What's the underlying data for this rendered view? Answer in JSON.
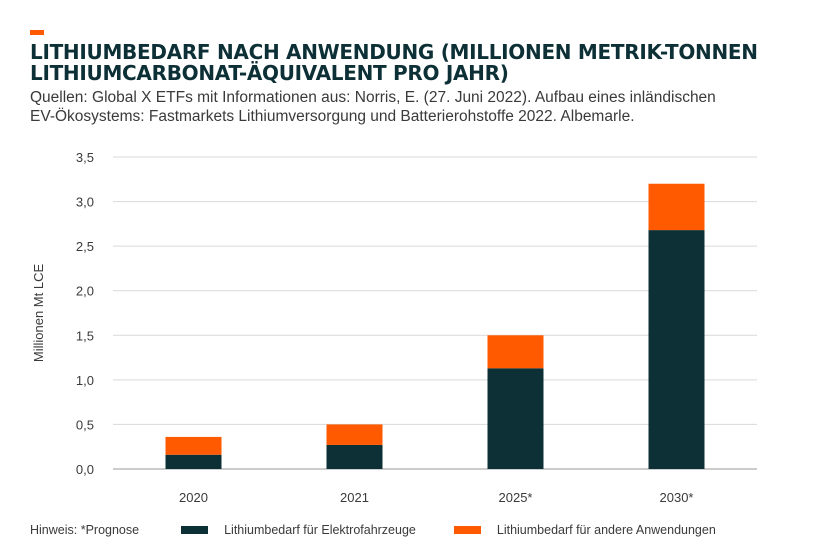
{
  "header": {
    "accent_color": "#ff5a00",
    "title_line1": "LITHIUMBEDARF NACH ANWENDUNG (MILLIONEN METRIK-TONNEN",
    "title_line2": "LITHIUMCARBONAT-ÄQUIVALENT PRO JAHR)",
    "source_line1": "Quellen: Global X ETFs mit Informationen aus: Norris, E. (27. Juni 2022). Aufbau eines inländischen",
    "source_line2": "EV-Ökosystems: Fastmarkets Lithiumversorgung und Batterierohstoffe 2022. Albemarle."
  },
  "footer": {
    "note": "Hinweis: *Prognose"
  },
  "chart_data": {
    "type": "bar",
    "stacked": true,
    "categories": [
      "2020",
      "2021",
      "2025*",
      "2030*"
    ],
    "series": [
      {
        "name": "Lithiumbedarf für Elektrofahrzeuge",
        "color": "#0c3036",
        "values": [
          0.16,
          0.27,
          1.13,
          2.68
        ]
      },
      {
        "name": "Lithiumbedarf für andere Anwendungen",
        "color": "#ff5a00",
        "values": [
          0.2,
          0.23,
          0.37,
          0.52
        ]
      }
    ],
    "ylabel": "Millionen Mt LCE",
    "ylim": [
      0,
      3.5
    ],
    "yticks": [
      "0,0",
      "0,5",
      "1,0",
      "1,5",
      "2,0",
      "2,5",
      "3,0",
      "3,5"
    ],
    "grid": true,
    "legend_position": "bottom"
  }
}
